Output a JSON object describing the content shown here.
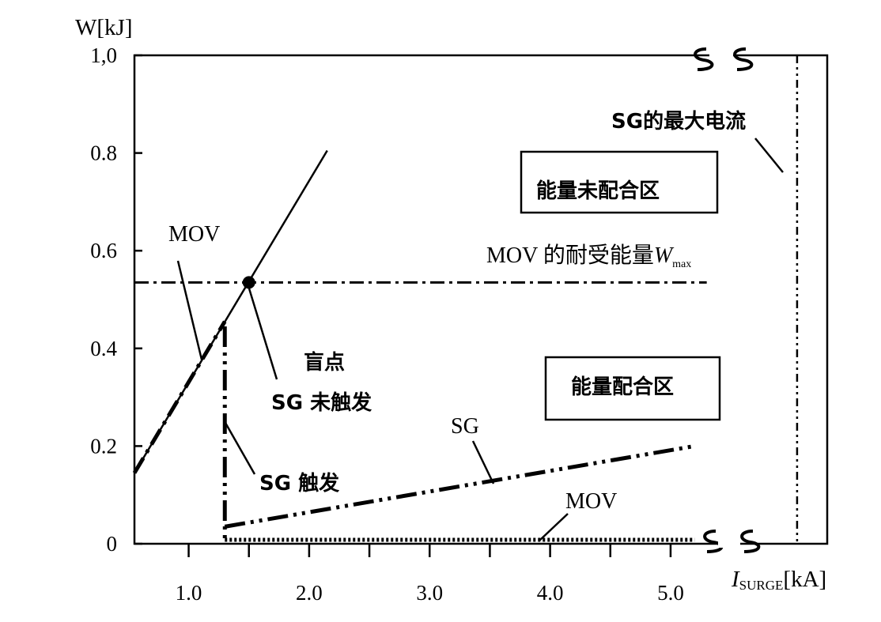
{
  "chart_data": {
    "type": "line",
    "ylabel": "W[kJ]",
    "xlabel_main": "I",
    "xlabel_sub": "SURGE",
    "xlabel_unit": "[kA]",
    "xlim": [
      0.55,
      6.3
    ],
    "ylim": [
      0,
      1.0
    ],
    "x_ticks": [
      {
        "value": 1.0,
        "label": "1.0"
      },
      {
        "value": 2.0,
        "label": "2.0"
      },
      {
        "value": 3.0,
        "label": "3.0"
      },
      {
        "value": 4.0,
        "label": "4.0"
      },
      {
        "value": 5.0,
        "label": "5.0"
      }
    ],
    "y_ticks": [
      {
        "value": 0,
        "label": "0"
      },
      {
        "value": 0.2,
        "label": "0.2"
      },
      {
        "value": 0.4,
        "label": "0.4"
      },
      {
        "value": 0.6,
        "label": "0.6"
      },
      {
        "value": 0.8,
        "label": "0.8"
      },
      {
        "value": 1.0,
        "label": "1,0"
      }
    ],
    "series": [
      {
        "key": "mov_total",
        "points": [
          [
            0.55,
            0.145
          ],
          [
            2.15,
            0.805
          ]
        ],
        "style": "solid"
      },
      {
        "key": "mov_fill",
        "points": [
          [
            0.55,
            0.145
          ],
          [
            1.3,
            0.455
          ]
        ],
        "style": "dash-dot"
      },
      {
        "key": "mov_drop",
        "points": [
          [
            1.3,
            0.445
          ],
          [
            1.3,
            0.0
          ]
        ],
        "style": "dash-dot-dot"
      },
      {
        "key": "sg",
        "points": [
          [
            1.3,
            0.035
          ],
          [
            5.2,
            0.2
          ]
        ],
        "style": "dash-dot-dot"
      },
      {
        "key": "mov_residual",
        "points": [
          [
            1.3,
            0.008
          ],
          [
            5.2,
            0.008
          ]
        ],
        "style": "dotted"
      }
    ],
    "wmax": {
      "y": 0.535,
      "x_range": [
        0.55,
        5.3
      ]
    },
    "sg_max_current": {
      "x": 6.05
    },
    "blind_point": {
      "x": 1.5,
      "y": 0.535
    },
    "labels": {
      "mov_upper": "MOV",
      "mov_lower": "MOV",
      "sg": "SG",
      "wmax": "MOV 的耐受能量",
      "wmax_symbol": "W",
      "wmax_sub": "max",
      "sg_max": "SG的最大电流",
      "blind": "盲点",
      "sg_not_triggered": "SG 未触发",
      "sg_triggered": "SG 触发",
      "zone_uncoordinated": "能量未配合区",
      "zone_coordinated": "能量配合区"
    }
  }
}
